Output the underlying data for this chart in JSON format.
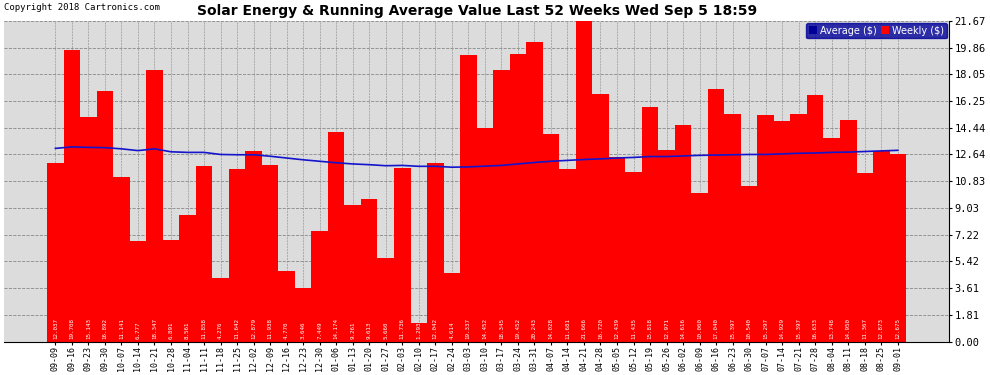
{
  "title": "Solar Energy & Running Average Value Last 52 Weeks Wed Sep 5 18:59",
  "copyright": "Copyright 2018 Cartronics.com",
  "bar_color": "#FF0000",
  "avg_line_color": "#1414CC",
  "background_color": "#FFFFFF",
  "plot_bg_color": "#DCDCDC",
  "yticks": [
    0.0,
    1.81,
    3.61,
    5.42,
    7.22,
    9.03,
    10.83,
    12.64,
    14.44,
    16.25,
    18.05,
    19.86,
    21.67
  ],
  "categories": [
    "09-09",
    "09-16",
    "09-23",
    "09-30",
    "10-07",
    "10-14",
    "10-21",
    "10-28",
    "11-04",
    "11-11",
    "11-18",
    "11-25",
    "12-02",
    "12-09",
    "12-16",
    "12-23",
    "12-30",
    "01-06",
    "01-13",
    "01-20",
    "01-27",
    "02-03",
    "02-10",
    "02-17",
    "02-24",
    "03-03",
    "03-10",
    "03-17",
    "03-24",
    "03-31",
    "04-07",
    "04-14",
    "04-21",
    "04-28",
    "05-05",
    "05-12",
    "05-19",
    "05-26",
    "06-02",
    "06-09",
    "06-16",
    "06-23",
    "06-30",
    "07-07",
    "07-14",
    "07-21",
    "07-28",
    "08-04",
    "08-11",
    "08-18",
    "08-25",
    "09-01"
  ],
  "weekly_values": [
    12.037,
    19.708,
    15.143,
    16.892,
    11.141,
    6.777,
    18.347,
    6.891,
    8.561,
    11.858,
    4.276,
    11.642,
    12.879,
    11.938,
    4.77,
    3.646,
    7.449,
    14.174,
    9.261,
    9.613,
    5.66,
    11.736,
    1.293,
    12.042,
    4.614,
    19.337,
    14.452,
    18.345,
    19.452,
    20.243,
    14.028,
    11.681,
    21.666,
    16.72,
    12.439,
    11.435,
    15.818,
    12.971,
    14.616,
    10.06,
    17.04,
    15.397,
    10.54,
    15.297,
    14.929,
    15.397,
    16.633,
    13.748,
    14.95,
    11.367,
    12.873,
    12.675
  ],
  "avg_values": [
    13.05,
    13.15,
    13.12,
    13.1,
    13.02,
    12.9,
    13.02,
    12.82,
    12.78,
    12.78,
    12.64,
    12.62,
    12.62,
    12.52,
    12.4,
    12.28,
    12.18,
    12.08,
    12.0,
    11.95,
    11.88,
    11.9,
    11.84,
    11.84,
    11.78,
    11.8,
    11.85,
    11.9,
    12.0,
    12.1,
    12.18,
    12.24,
    12.3,
    12.34,
    12.4,
    12.44,
    12.5,
    12.5,
    12.54,
    12.58,
    12.6,
    12.62,
    12.64,
    12.64,
    12.68,
    12.72,
    12.74,
    12.78,
    12.8,
    12.84,
    12.88,
    12.92
  ],
  "legend_avg_color": "#000099",
  "legend_weekly_color": "#FF0000",
  "legend_avg_label": "Average ($)",
  "legend_weekly_label": "Weekly ($)"
}
